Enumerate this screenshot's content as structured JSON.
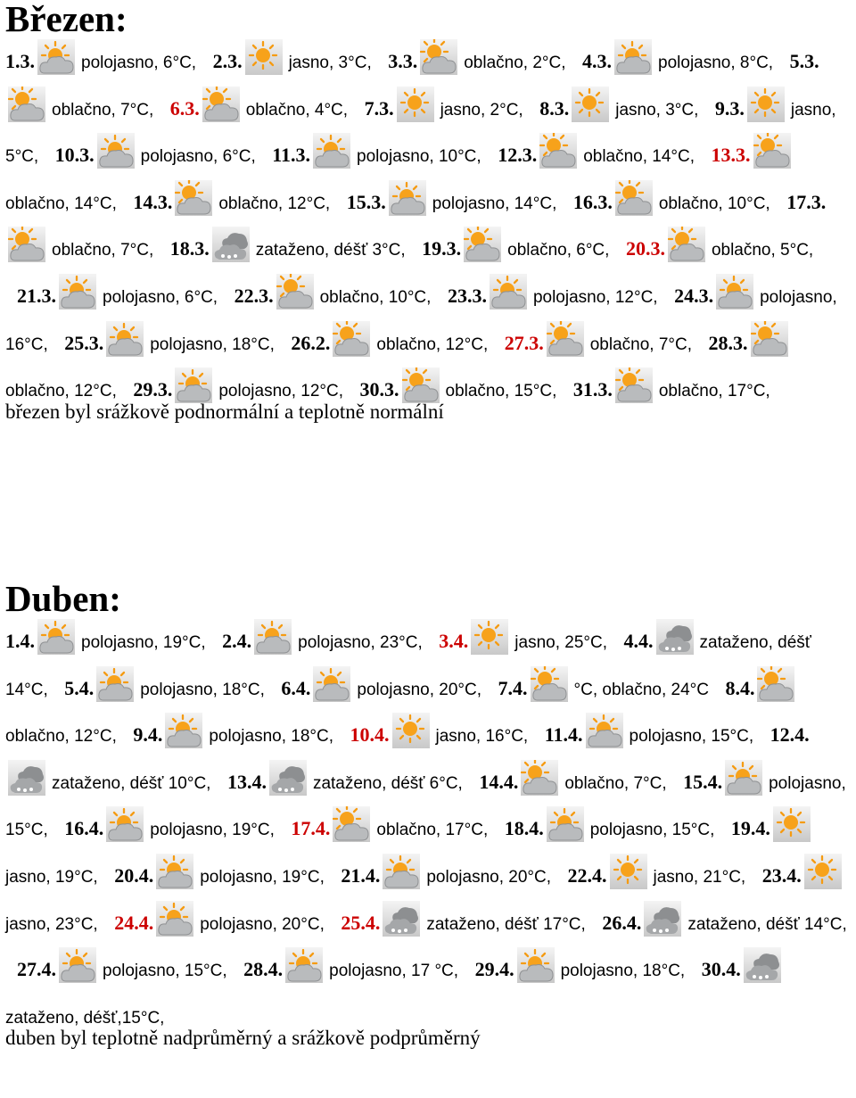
{
  "march": {
    "heading": "Březen:",
    "entries": [
      {
        "date": "1.3.",
        "icon": "partly-cloudy-icon",
        "text": "polojasno, 6°C,",
        "red": false
      },
      {
        "date": "2.3.",
        "icon": "sunny-icon",
        "text": "jasno, 3°C,",
        "red": false
      },
      {
        "date": "3.3.",
        "icon": "cloudy-icon",
        "text": "oblačno, 2°C,",
        "red": false
      },
      {
        "date": "4.3.",
        "icon": "partly-cloudy-icon",
        "text": "polojasno, 8°C,",
        "red": false
      },
      {
        "date": "5.3.",
        "icon": "cloudy-icon",
        "text": "oblačno, 7°C,",
        "red": false
      },
      {
        "date": "6.3.",
        "icon": "cloudy-icon",
        "text": "oblačno, 4°C,",
        "red": true
      },
      {
        "date": "7.3.",
        "icon": "sunny-icon",
        "text": "jasno, 2°C,",
        "red": false
      },
      {
        "date": "8.3.",
        "icon": "sunny-icon",
        "text": "jasno, 3°C,",
        "red": false
      },
      {
        "date": "9.3.",
        "icon": "sunny-icon",
        "text": "jasno, 5°C,",
        "red": false
      },
      {
        "date": "10.3.",
        "icon": "partly-cloudy-icon",
        "text": "polojasno, 6°C,",
        "red": false
      },
      {
        "date": "11.3.",
        "icon": "partly-cloudy-icon",
        "text": "polojasno, 10°C,",
        "red": false
      },
      {
        "date": "12.3.",
        "icon": "cloudy-icon",
        "text": "oblačno, 14°C,",
        "red": false
      },
      {
        "date": "13.3.",
        "icon": "cloudy-icon",
        "text": "oblačno, 14°C,",
        "red": true
      },
      {
        "date": "14.3.",
        "icon": "cloudy-icon",
        "text": "oblačno, 12°C,",
        "red": false
      },
      {
        "date": "15.3.",
        "icon": "partly-cloudy-icon",
        "text": "polojasno, 14°C,",
        "red": false
      },
      {
        "date": "16.3.",
        "icon": "cloudy-icon",
        "text": "oblačno, 10°C,",
        "red": false
      },
      {
        "date": "17.3.",
        "icon": "cloudy-icon",
        "text": "oblačno, 7°C,",
        "red": false
      },
      {
        "date": "18.3.",
        "icon": "rain-icon",
        "text": "zataženo, déšť 3°C,",
        "red": false
      },
      {
        "date": "19.3.",
        "icon": "cloudy-icon",
        "text": "oblačno, 6°C,",
        "red": false
      },
      {
        "date": "20.3.",
        "icon": "cloudy-icon",
        "text": "oblačno, 5°C,",
        "red": true
      },
      {
        "date": "21.3.",
        "icon": "partly-cloudy-icon",
        "text": "polojasno, 6°C,",
        "red": false
      },
      {
        "date": "22.3.",
        "icon": "cloudy-icon",
        "text": "oblačno, 10°C,",
        "red": false
      },
      {
        "date": "23.3.",
        "icon": "partly-cloudy-icon",
        "text": "polojasno, 12°C,",
        "red": false
      },
      {
        "date": "24.3.",
        "icon": "partly-cloudy-icon",
        "text": "polojasno, 16°C,",
        "red": false
      },
      {
        "date": "25.3.",
        "icon": "partly-cloudy-icon",
        "text": "polojasno, 18°C,",
        "red": false
      },
      {
        "date": "26.2.",
        "icon": "cloudy-icon",
        "text": "oblačno, 12°C,",
        "red": false
      },
      {
        "date": "27.3.",
        "icon": "cloudy-icon",
        "text": "oblačno, 7°C,",
        "red": true
      },
      {
        "date": "28.3.",
        "icon": "cloudy-icon",
        "text": "oblačno, 12°C,",
        "red": false
      },
      {
        "date": "29.3.",
        "icon": "partly-cloudy-icon",
        "text": "polojasno, 12°C,",
        "red": false
      },
      {
        "date": "30.3.",
        "icon": "cloudy-icon",
        "text": "oblačno, 15°C,",
        "red": false
      },
      {
        "date": "31.3.",
        "icon": "cloudy-icon",
        "text": "oblačno, 17°C,",
        "red": false
      }
    ],
    "summary": "březen byl srážkově podnormální a teplotně normální"
  },
  "april": {
    "heading": "Duben:",
    "entries": [
      {
        "date": "1.4.",
        "icon": "partly-cloudy-icon",
        "text": "polojasno, 19°C,",
        "red": false
      },
      {
        "date": "2.4.",
        "icon": "partly-cloudy-icon",
        "text": "polojasno, 23°C,",
        "red": false
      },
      {
        "date": "3.4.",
        "icon": "sunny-icon",
        "text": "jasno, 25°C,",
        "red": true
      },
      {
        "date": "4.4.",
        "icon": "rain-icon",
        "text": "zataženo, déšť 14°C,",
        "red": false
      },
      {
        "date": "5.4.",
        "icon": "partly-cloudy-icon",
        "text": "polojasno, 18°C,",
        "red": false
      },
      {
        "date": "6.4.",
        "icon": "partly-cloudy-icon",
        "text": "polojasno, 20°C,",
        "red": false
      },
      {
        "date": "7.4.",
        "icon": "cloudy-icon",
        "text": "°C, oblačno, 24°C",
        "red": false
      },
      {
        "date": "8.4.",
        "icon": "cloudy-icon",
        "text": "oblačno, 12°C,",
        "red": false
      },
      {
        "date": "9.4.",
        "icon": "partly-cloudy-icon",
        "text": "polojasno, 18°C,",
        "red": false
      },
      {
        "date": "10.4.",
        "icon": "sunny-icon",
        "text": "jasno, 16°C,",
        "red": true
      },
      {
        "date": "11.4.",
        "icon": "partly-cloudy-icon",
        "text": "polojasno, 15°C,",
        "red": false
      },
      {
        "date": "12.4.",
        "icon": "rain-icon",
        "text": "zataženo, déšť 10°C,",
        "red": false
      },
      {
        "date": "13.4.",
        "icon": "rain-icon",
        "text": "zataženo, déšť 6°C,",
        "red": false
      },
      {
        "date": "14.4.",
        "icon": "cloudy-icon",
        "text": "oblačno, 7°C,",
        "red": false
      },
      {
        "date": "15.4.",
        "icon": "partly-cloudy-icon",
        "text": "polojasno, 15°C,",
        "red": false
      },
      {
        "date": "16.4.",
        "icon": "partly-cloudy-icon",
        "text": "polojasno, 19°C,",
        "red": false
      },
      {
        "date": "17.4.",
        "icon": "cloudy-icon",
        "text": "oblačno, 17°C,",
        "red": true
      },
      {
        "date": "18.4.",
        "icon": "partly-cloudy-icon",
        "text": "polojasno, 15°C,",
        "red": false
      },
      {
        "date": "19.4.",
        "icon": "sunny-icon",
        "text": "jasno, 19°C,",
        "red": false
      },
      {
        "date": "20.4.",
        "icon": "partly-cloudy-icon",
        "text": "polojasno, 19°C,",
        "red": false
      },
      {
        "date": "21.4.",
        "icon": "partly-cloudy-icon",
        "text": "polojasno, 20°C,",
        "red": false
      },
      {
        "date": "22.4.",
        "icon": "sunny-icon",
        "text": "jasno, 21°C,",
        "red": false
      },
      {
        "date": "23.4.",
        "icon": "sunny-icon",
        "text": "jasno, 23°C,",
        "red": false
      },
      {
        "date": "24.4.",
        "icon": "partly-cloudy-icon",
        "text": "polojasno, 20°C,",
        "red": true
      },
      {
        "date": "25.4.",
        "icon": "rain-icon",
        "text": "zataženo, déšť 17°C,",
        "red": true
      },
      {
        "date": "26.4.",
        "icon": "rain-icon",
        "text": "zataženo, déšť 14°C,",
        "red": false
      },
      {
        "date": "27.4.",
        "icon": "partly-cloudy-icon",
        "text": "polojasno, 15°C,",
        "red": false
      },
      {
        "date": "28.4.",
        "icon": "partly-cloudy-icon",
        "text": "polojasno, 17 °C,",
        "red": false
      },
      {
        "date": "29.4.",
        "icon": "partly-cloudy-icon",
        "text": "polojasno, 18°C,",
        "red": false
      },
      {
        "date": "30.4.",
        "icon": "rain-icon",
        "text": "zataženo, déšť,15°C,",
        "red": false
      }
    ],
    "summary": "duben byl teplotně nadprůměrný a srážkově podprůměrný"
  },
  "colors": {
    "red_date": "#cc0000",
    "sun": "#f7a21b",
    "cloud": "#a7a9ab"
  }
}
